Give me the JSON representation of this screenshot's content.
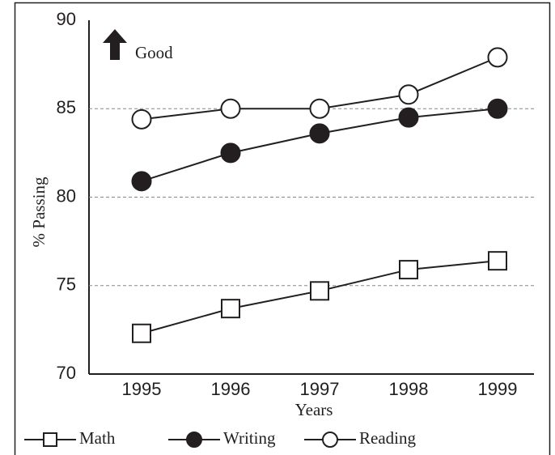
{
  "chart_data": {
    "type": "line",
    "annotation": "Good",
    "xlabel": "Years",
    "ylabel": "% Passing",
    "categories": [
      "1995",
      "1996",
      "1997",
      "1998",
      "1999"
    ],
    "series": [
      {
        "name": "Math",
        "color": "#231f20",
        "marker": "square",
        "marker_fill": "#ffffff",
        "values": [
          72.3,
          73.7,
          74.7,
          75.9,
          76.4
        ]
      },
      {
        "name": "Writing",
        "color": "#231f20",
        "marker": "circle",
        "marker_fill": "#231f20",
        "values": [
          80.9,
          82.5,
          83.6,
          84.5,
          85
        ]
      },
      {
        "name": "Reading",
        "color": "#231f20",
        "marker": "circle",
        "marker_fill": "#ffffff",
        "values": [
          84.4,
          85,
          85,
          85.8,
          87.9
        ]
      }
    ],
    "ylim": [
      70,
      90
    ],
    "yticks": [
      70,
      75,
      80,
      85,
      90
    ],
    "grid": true,
    "legend": "bottom"
  }
}
